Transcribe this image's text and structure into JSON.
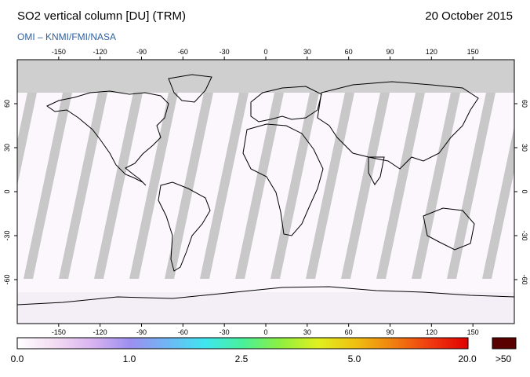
{
  "header": {
    "title": "SO2 vertical column [DU] (TRM)",
    "date": "20 October 2015",
    "credit": "OMI  –  KNMI/FMI/NASA"
  },
  "map": {
    "lon_ticks": [
      "-150",
      "-120",
      "-90",
      "-60",
      "-30",
      "0",
      "30",
      "60",
      "90",
      "120",
      "150"
    ],
    "lat_ticks": [
      "60",
      "30",
      "0",
      "-30",
      "-60"
    ],
    "colors": {
      "frame": "#000000",
      "polar_night": "#cfcfcf",
      "swath_gap": "#c8c8c8",
      "swath_gap_dark": "#9b9b9b",
      "coastline": "#000000"
    }
  },
  "colorbar": {
    "labels": [
      "0.0",
      "1.0",
      "2.5",
      "5.0",
      "20.0"
    ],
    "max_label": ">50",
    "max_color": "#5a0000",
    "stops": [
      "#ffffff",
      "#f3dcf3",
      "#d9b3f0",
      "#9c8ff0",
      "#6fb6f4",
      "#3fe6f0",
      "#48f09a",
      "#8ef040",
      "#e0f020",
      "#f0c010",
      "#f08010",
      "#f03a10",
      "#e00000"
    ]
  }
}
